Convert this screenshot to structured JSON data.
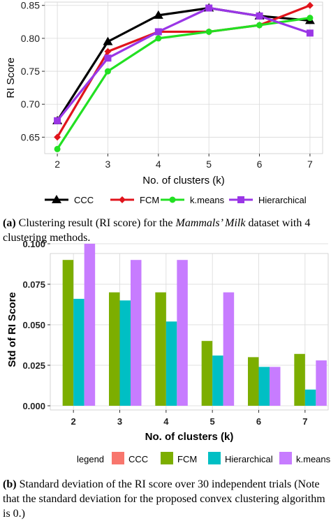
{
  "chart_data": [
    {
      "type": "line",
      "title": "",
      "xlabel": "No. of clusters (k)",
      "ylabel": "RI Score",
      "x": [
        2,
        3,
        4,
        5,
        6,
        7
      ],
      "xticks": [
        "2",
        "3",
        "4",
        "5",
        "6",
        "7"
      ],
      "yticks": [
        "0.65",
        "0.70",
        "0.75",
        "0.80",
        "0.85"
      ],
      "ylim": [
        0.625,
        0.855
      ],
      "grid": true,
      "legend_position": "bottom",
      "series": [
        {
          "name": "CCC",
          "color": "#000000",
          "marker": "triangle",
          "values": [
            0.675,
            0.795,
            0.835,
            0.846,
            0.834,
            0.827
          ]
        },
        {
          "name": "FCM",
          "color": "#e0141c",
          "marker": "diamond",
          "values": [
            0.65,
            0.78,
            0.81,
            0.81,
            0.82,
            0.85
          ]
        },
        {
          "name": "k.means",
          "color": "#22e022",
          "marker": "circle",
          "values": [
            0.632,
            0.75,
            0.8,
            0.81,
            0.82,
            0.831
          ]
        },
        {
          "name": "Hierarchical",
          "color": "#9a36e6",
          "marker": "square",
          "values": [
            0.675,
            0.77,
            0.81,
            0.846,
            0.834,
            0.808
          ]
        }
      ]
    },
    {
      "type": "bar",
      "title": "",
      "xlabel": "No. of clusters (k)",
      "ylabel": "Std of RI Score",
      "categories": [
        "2",
        "3",
        "4",
        "5",
        "6",
        "7"
      ],
      "yticks": [
        "0.000",
        "0.025",
        "0.050",
        "0.075",
        "0.100"
      ],
      "ylim": [
        0,
        0.1
      ],
      "grid": true,
      "legend_position": "bottom",
      "legend_title": "legend",
      "series": [
        {
          "name": "CCC",
          "color": "#f8766d",
          "values": [
            0,
            0,
            0,
            0,
            0,
            0
          ]
        },
        {
          "name": "FCM",
          "color": "#7cae00",
          "values": [
            0.09,
            0.07,
            0.07,
            0.04,
            0.03,
            0.032
          ]
        },
        {
          "name": "Hierarchical",
          "color": "#00bfc4",
          "values": [
            0.066,
            0.065,
            0.052,
            0.031,
            0.024,
            0.01
          ]
        },
        {
          "name": "k.means",
          "color": "#c77cff",
          "values": [
            0.1,
            0.09,
            0.09,
            0.07,
            0.024,
            0.028
          ]
        }
      ]
    }
  ],
  "captions": {
    "a": {
      "label": "(a)",
      "text_before": "Clustering result (RI score) for the",
      "text_italic": "Mammals’ Milk",
      "text_after": "dataset with 4 clustering methods."
    },
    "b": {
      "label": "(b)",
      "text": "Standard deviation of the RI score over 30 independent trials (Note that the standard deviation for the proposed convex clustering algorithm is 0.)"
    }
  }
}
